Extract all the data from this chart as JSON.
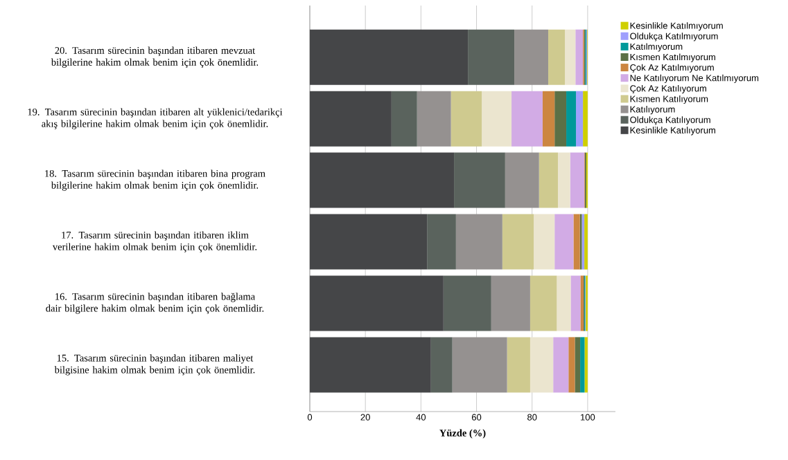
{
  "chart_data": {
    "type": "bar",
    "orientation": "horizontal",
    "stacked": true,
    "xlabel": "Yüzde (%)",
    "categories": [
      "20. Tasarım sürecinin başından itibaren mevzuat bilgilerine hakim olmak benim için çok önemlidir.",
      "19. Tasarım sürecinin başından itibaren alt yüklenici/tedarikçi akış bilgilerine hakim olmak benim için çok önemlidir.",
      "18. Tasarım sürecinin başından itibaren bina program bilgilerine hakim olmak benim için çok önemlidir.",
      "17. Tasarım sürecinin başından itibaren iklim verilerine hakim olmak benim için çok önemlidir.",
      "16. Tasarım sürecinin başından itibaren bağlama dair bilgilere hakim olmak benim için çok önemlidir.",
      "15. Tasarım sürecinin başından itibaren maliyet bilgisine hakim olmak benim için çok önemlidir."
    ],
    "series": [
      {
        "name": "Kesinlikle Katılıyorum",
        "color": "#454648",
        "values": [
          56.9,
          29.4,
          51.9,
          42.2,
          48.1,
          43.6
        ]
      },
      {
        "name": "Oldukça Katılıyorum",
        "color": "#5a635d",
        "values": [
          16.7,
          9.2,
          18.4,
          10.4,
          17.2,
          7.7
        ]
      },
      {
        "name": "Katılıyorum",
        "color": "#959190",
        "values": [
          12.2,
          12.2,
          12.2,
          16.7,
          14.0,
          19.7
        ]
      },
      {
        "name": "Kısmen Katılıyorum",
        "color": "#cfca8f",
        "values": [
          6.0,
          11.1,
          6.8,
          11.3,
          9.6,
          8.3
        ]
      },
      {
        "name": "Çok Az Katılıyorum",
        "color": "#ebe5cf",
        "values": [
          3.8,
          10.7,
          4.4,
          7.5,
          5.0,
          8.3
        ]
      },
      {
        "name": "Ne Katılıyorum Ne Katılmıyorum",
        "color": "#d2abe5",
        "values": [
          2.7,
          11.2,
          5.1,
          6.8,
          3.5,
          5.5
        ]
      },
      {
        "name": "Çok Az Katılmıyorum",
        "color": "#cc8641",
        "values": [
          0.4,
          4.3,
          0.2,
          2.3,
          1.1,
          2.3
        ]
      },
      {
        "name": "Kısmen Katılmıyorum",
        "color": "#5c7046",
        "values": [
          0.4,
          4.2,
          0.5,
          0.7,
          0.3,
          1.9
        ]
      },
      {
        "name": "Katılmıyorum",
        "color": "#00999a",
        "values": [
          0.4,
          3.5,
          0,
          null,
          0.3,
          1.6
        ]
      },
      {
        "name": "Oldukça Katılmıyorum",
        "color": "#9f9ffd",
        "values": [
          0.3,
          2.5,
          0,
          0.9,
          0.2,
          0
        ]
      },
      {
        "name": "Kesinlikle Katılmıyorum",
        "color": "#cfcf00",
        "values": [
          0.2,
          1.7,
          0.5,
          1.2,
          0.7,
          1.1
        ]
      }
    ],
    "xlim": [
      0,
      110
    ],
    "xticks": [
      0,
      20,
      40,
      60,
      80,
      100
    ],
    "grid": "x",
    "legend": "top right"
  }
}
